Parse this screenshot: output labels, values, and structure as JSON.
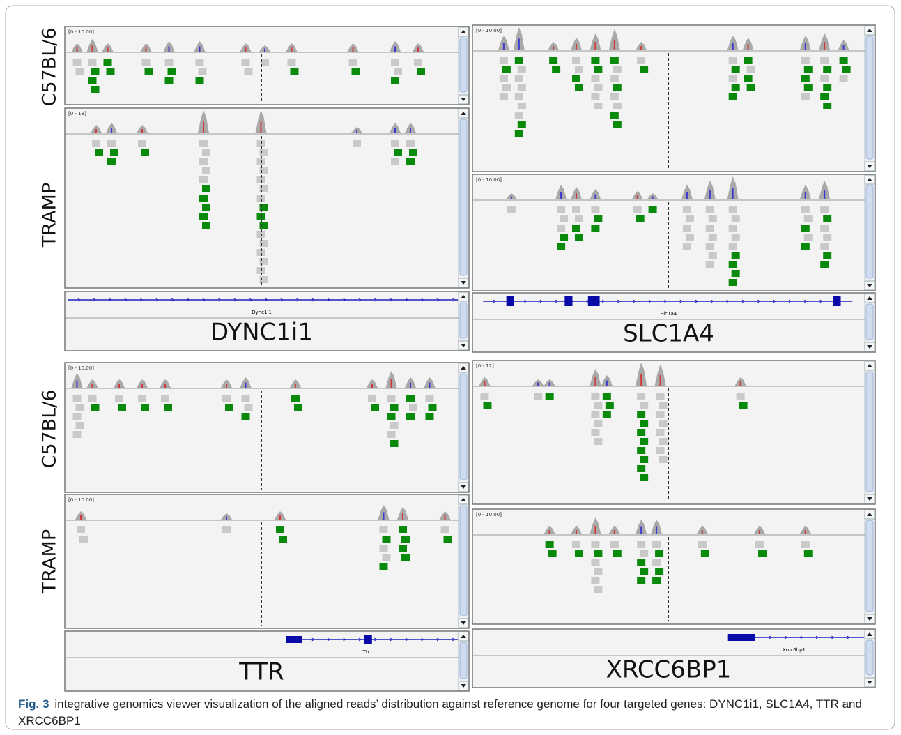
{
  "row_labels": [
    "C57BL/6",
    "TRAMP",
    "C57BL/6",
    "TRAMP"
  ],
  "panels": [
    {
      "ranges": [
        "[0 - 10.00]",
        "[0 - 18]"
      ],
      "gene_label": "Dync1i1",
      "gene_name": "DYNC1i1"
    },
    {
      "ranges": [
        "[0 - 10.00]",
        "[0 - 10.00]"
      ],
      "gene_label": "Slc1a4",
      "gene_name": "SLC1A4"
    },
    {
      "ranges": [
        "[0 - 10.00]",
        "[0 - 10.00]"
      ],
      "gene_label": "Ttr",
      "gene_name": "TTR"
    },
    {
      "ranges": [
        "[0 - 12]",
        "[0 - 10.00]"
      ],
      "gene_label": "Xrcc6bp1",
      "gene_name": "XRCC6BP1"
    }
  ],
  "caption": {
    "label": "Fig. 3",
    "text": "integrative genomics viewer visualization of the aligned reads’ distribution against reference genome for four targeted genes: DYNC1i1, SLC1A4, TTR and XRCC6BP1"
  }
}
